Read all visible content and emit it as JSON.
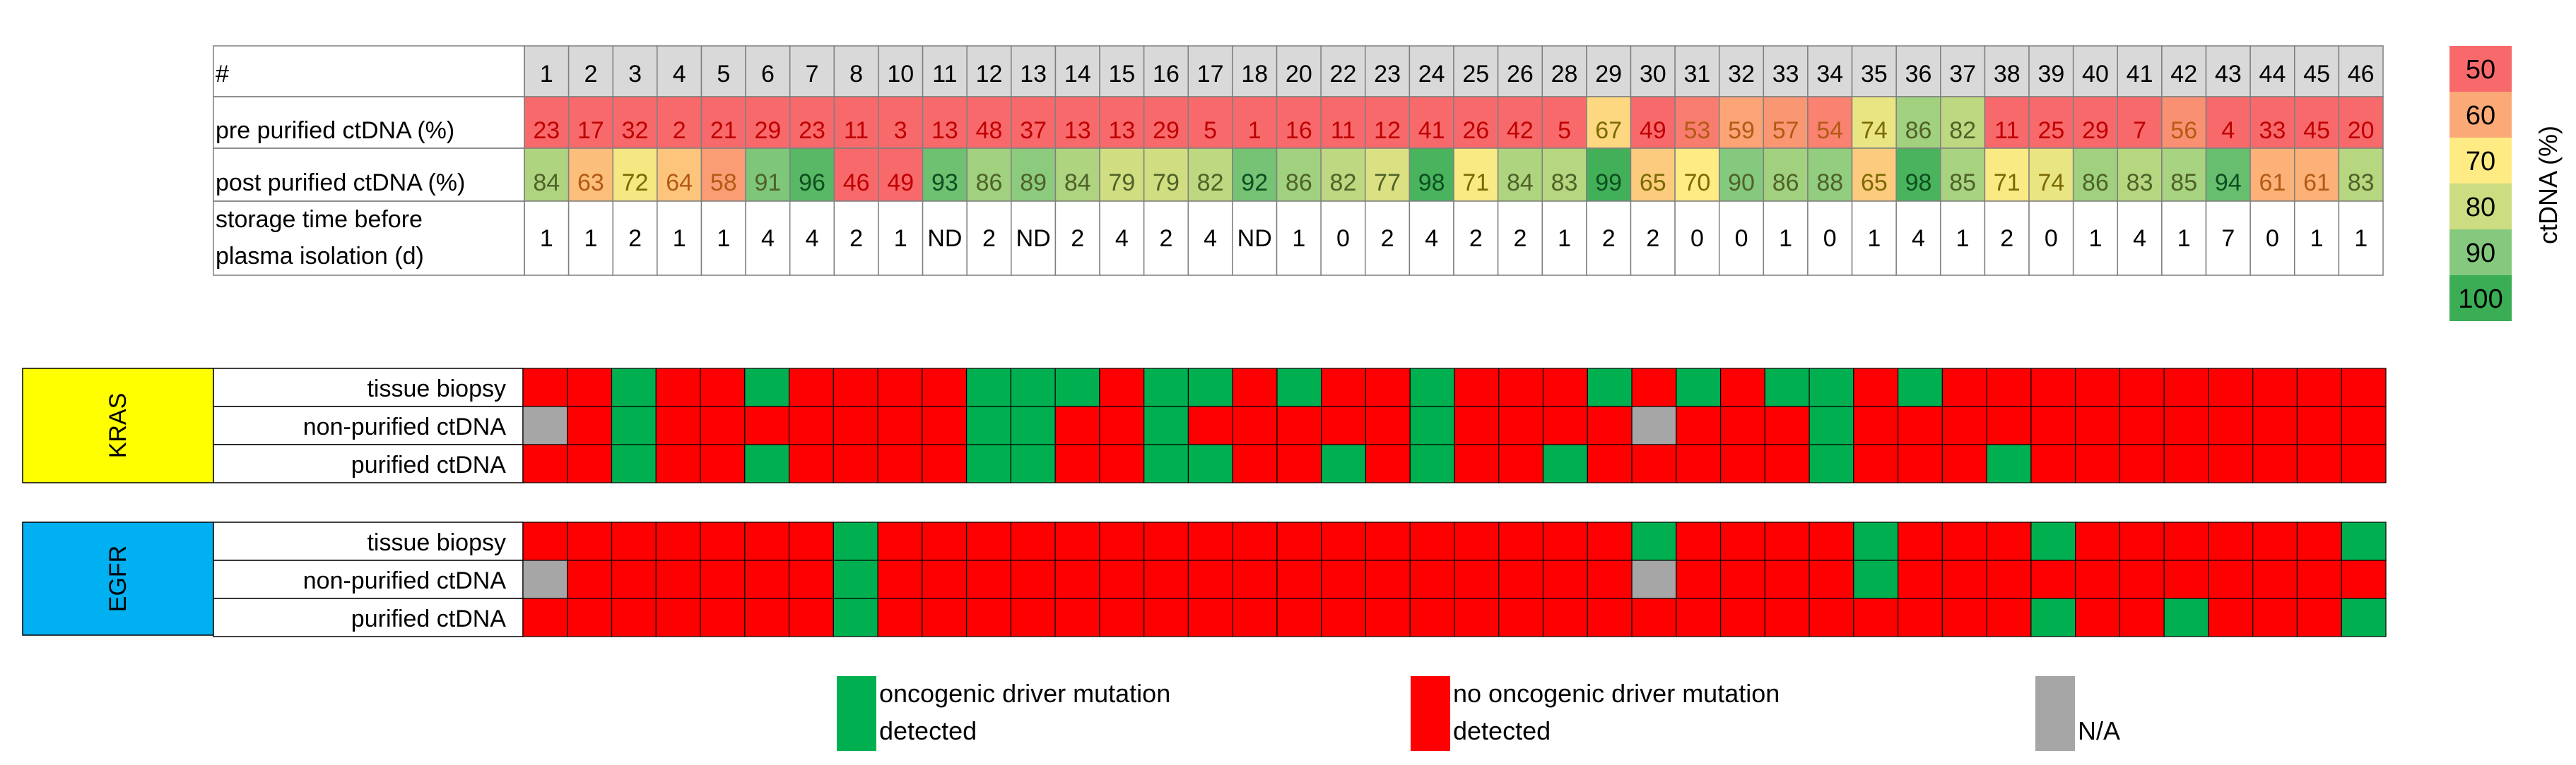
{
  "chart_data": {
    "type": "heatmap",
    "samples": [
      "1",
      "2",
      "3",
      "4",
      "5",
      "6",
      "7",
      "8",
      "10",
      "11",
      "12",
      "13",
      "14",
      "15",
      "16",
      "17",
      "18",
      "20",
      "22",
      "23",
      "24",
      "25",
      "26",
      "28",
      "29",
      "30",
      "31",
      "32",
      "33",
      "34",
      "35",
      "36",
      "37",
      "38",
      "39",
      "40",
      "41",
      "42",
      "43",
      "44",
      "45",
      "46"
    ],
    "table_rows": {
      "header_label": "#",
      "pre_label": "pre purified ctDNA (%)",
      "post_label": "post purified ctDNA (%)",
      "storage_label_line1": "storage time before",
      "storage_label_line2": "plasma isolation (d)"
    },
    "pre_purified_ctdna": [
      "23",
      "17",
      "32",
      "2",
      "21",
      "29",
      "23",
      "11",
      "3",
      "13",
      "48",
      "37",
      "13",
      "13",
      "29",
      "5",
      "1",
      "16",
      "11",
      "12",
      "41",
      "26",
      "42",
      "5",
      "67",
      "49",
      "53",
      "59",
      "57",
      "54",
      "74",
      "86",
      "82",
      "11",
      "25",
      "29",
      "7",
      "56",
      "4",
      "33",
      "45",
      "20"
    ],
    "post_purified_ctdna": [
      "84",
      "63",
      "72",
      "64",
      "58",
      "91",
      "96",
      "46",
      "49",
      "93",
      "86",
      "89",
      "84",
      "79",
      "79",
      "82",
      "92",
      "86",
      "82",
      "77",
      "98",
      "71",
      "84",
      "83",
      "99",
      "65",
      "70",
      "90",
      "86",
      "88",
      "65",
      "98",
      "85",
      "71",
      "74",
      "86",
      "83",
      "85",
      "94",
      "61",
      "61",
      "83"
    ],
    "storage_time_days": [
      "1",
      "1",
      "2",
      "1",
      "1",
      "4",
      "4",
      "2",
      "1",
      "ND",
      "2",
      "ND",
      "2",
      "4",
      "2",
      "4",
      "ND",
      "1",
      "0",
      "2",
      "4",
      "2",
      "2",
      "1",
      "2",
      "2",
      "0",
      "0",
      "1",
      "0",
      "1",
      "4",
      "1",
      "2",
      "0",
      "1",
      "4",
      "1",
      "7",
      "0",
      "1",
      "1"
    ],
    "groups": [
      {
        "gene": "KRAS",
        "color": "#ffff00",
        "rows": [
          {
            "label": "tissue biopsy",
            "status": "RRGRRGRRRRGGGRGGRGRRGRRRGRGRGGRGRRRRRRRRRR"
          },
          {
            "label": "non-purified ctDNA",
            "status": "NRGRRRRRRRGGRRGRRRRRGRRRRNRRRGRRRRRRRRRRRR"
          },
          {
            "label": "purified ctDNA",
            "status": "RRGRRGRRRRGGRRGGRRGRGRRGRRRRRGRRRGRRRRRRRR"
          }
        ]
      },
      {
        "gene": "EGFR",
        "color": "#00b0f0",
        "rows": [
          {
            "label": "tissue biopsy",
            "status": "RRRRRRRGRRRRRRRRRRRRRRRRRGRRRRGRRRGRRRRRRG"
          },
          {
            "label": "non-purified ctDNA",
            "status": "NRRRRRRGRRRRRRRRRRRRRRRRRNRRRRGRRRRRRRRRRR"
          },
          {
            "label": "purified ctDNA",
            "status": "RRRRRRRGRRRRRRRRRRRRRRRRRRRRRRRRRRGRRGRRRG"
          }
        ]
      }
    ],
    "status_colors": {
      "G": "#00b050",
      "R": "#ff0000",
      "N": "#a6a6a6"
    },
    "legend": [
      {
        "key": "G",
        "line1": "oncogenic driver mutation",
        "line2": "detected"
      },
      {
        "key": "R",
        "line1": "no oncogenic driver mutation",
        "line2": "detected"
      },
      {
        "key": "N",
        "line1": "N/A",
        "line2": ""
      }
    ],
    "colorscale": {
      "label": "ctDNA (%)",
      "stops": [
        {
          "value": 50,
          "color": "#f8696b"
        },
        {
          "value": 60,
          "color": "#fbaa77"
        },
        {
          "value": 70,
          "color": "#ffeb84"
        },
        {
          "value": 80,
          "color": "#cbdc81"
        },
        {
          "value": 90,
          "color": "#85c97e"
        },
        {
          "value": 100,
          "color": "#3aad55"
        }
      ]
    }
  }
}
